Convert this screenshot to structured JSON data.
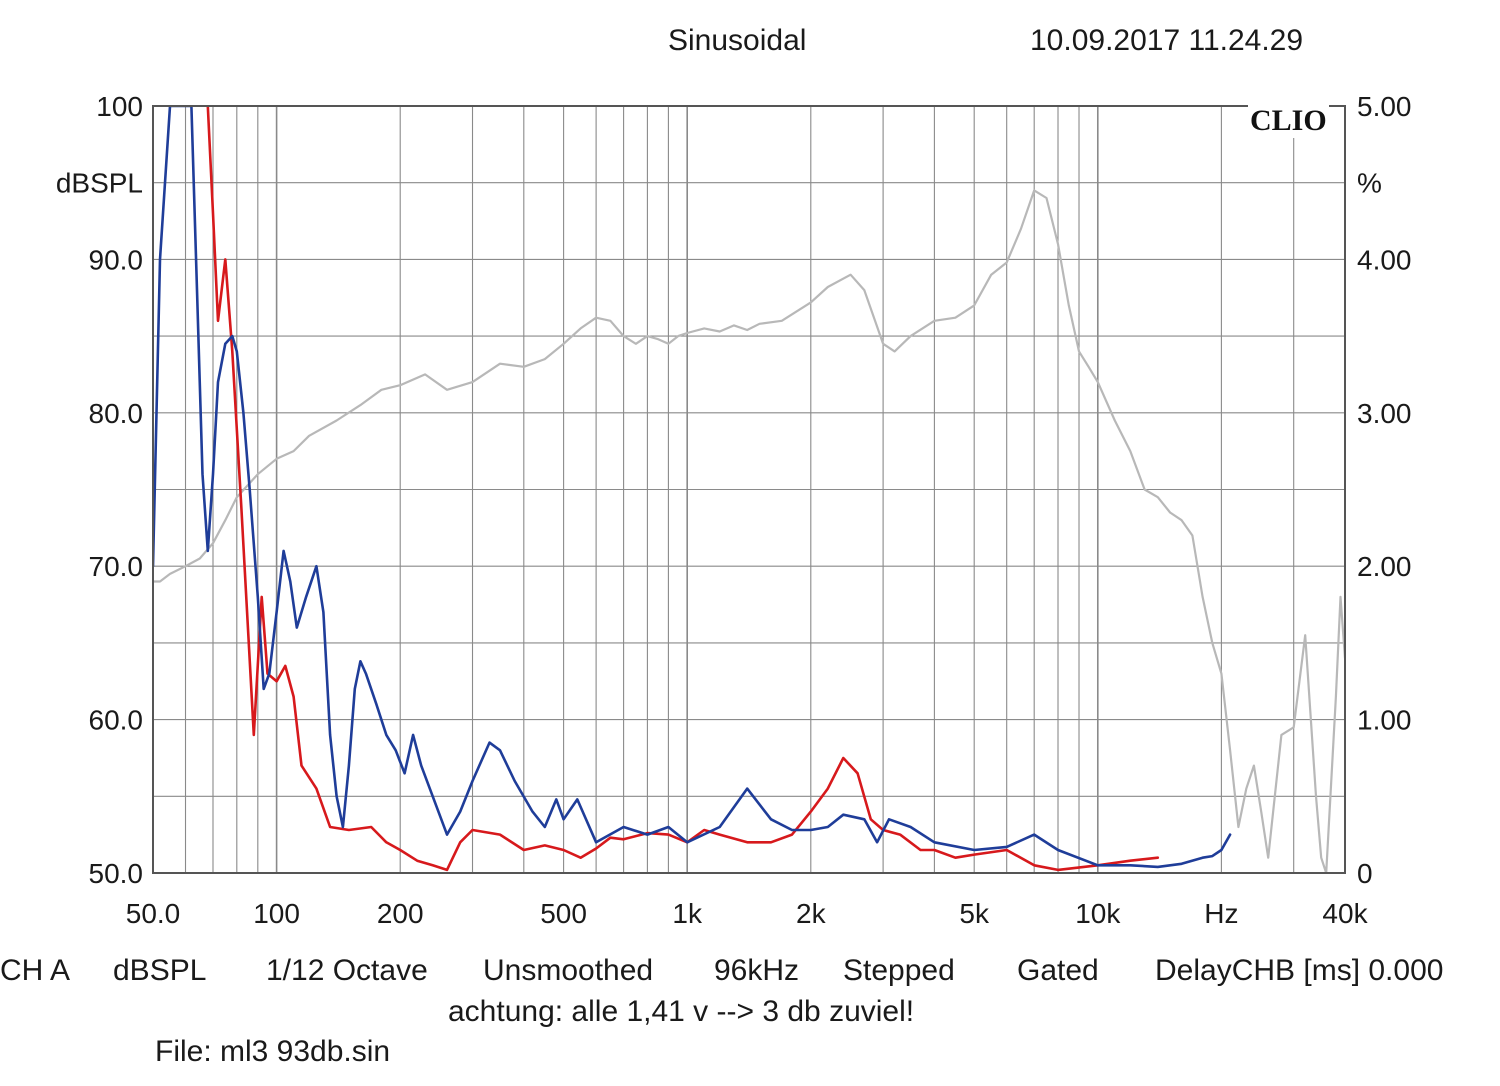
{
  "header": {
    "title": "Sinusoidal",
    "datetime": "10.09.2017 11.24.29"
  },
  "logo": "CLIO",
  "footer": {
    "channel": "CH A",
    "unit": "dBSPL",
    "octave": "1/12 Octave",
    "smoothing": "Unsmoothed",
    "rate": "96kHz",
    "mode": "Stepped",
    "gating": "Gated",
    "delay": "DelayCHB [ms] 0.000",
    "note": "achtung: alle 1,41 v --> 3 db zuviel!",
    "file": "File: ml3 93db.sin"
  },
  "colors": {
    "grid": "#8a8a8a",
    "axis": "#555555",
    "red_series": "#d7191c",
    "blue_series": "#1f3d99",
    "gray_series": "#b8b8b8"
  },
  "chart_data": {
    "type": "line",
    "x_scale": "log",
    "xlim": [
      50,
      40000
    ],
    "ylim_left": [
      50,
      100
    ],
    "ylim_right": [
      0,
      5
    ],
    "grid": true,
    "left_axis_unit": "dBSPL",
    "right_axis_unit": "%",
    "x_unit": "Hz",
    "left_ticks": [
      "50.0",
      "60.0",
      "70.0",
      "80.0",
      "90.0",
      "100"
    ],
    "right_ticks": [
      "0",
      "1.00",
      "2.00",
      "3.00",
      "4.00",
      "5.00"
    ],
    "x_tick_labels": [
      {
        "value": 50,
        "label": "50.0"
      },
      {
        "value": 100,
        "label": "100"
      },
      {
        "value": 200,
        "label": "200"
      },
      {
        "value": 500,
        "label": "500"
      },
      {
        "value": 1000,
        "label": "1k"
      },
      {
        "value": 2000,
        "label": "2k"
      },
      {
        "value": 5000,
        "label": "5k"
      },
      {
        "value": 10000,
        "label": "10k"
      },
      {
        "value": 20000,
        "label": "Hz"
      },
      {
        "value": 40000,
        "label": "40k"
      }
    ],
    "series": [
      {
        "color": "#b8b8b8",
        "axis": "right",
        "points": [
          [
            50,
            1.9
          ],
          [
            52,
            1.9
          ],
          [
            55,
            1.95
          ],
          [
            60,
            2.0
          ],
          [
            65,
            2.05
          ],
          [
            70,
            2.15
          ],
          [
            75,
            2.3
          ],
          [
            80,
            2.45
          ],
          [
            90,
            2.6
          ],
          [
            100,
            2.7
          ],
          [
            110,
            2.75
          ],
          [
            120,
            2.85
          ],
          [
            140,
            2.95
          ],
          [
            160,
            3.05
          ],
          [
            180,
            3.15
          ],
          [
            200,
            3.18
          ],
          [
            230,
            3.25
          ],
          [
            260,
            3.15
          ],
          [
            300,
            3.2
          ],
          [
            350,
            3.32
          ],
          [
            400,
            3.3
          ],
          [
            450,
            3.35
          ],
          [
            500,
            3.45
          ],
          [
            550,
            3.55
          ],
          [
            600,
            3.62
          ],
          [
            650,
            3.6
          ],
          [
            700,
            3.5
          ],
          [
            750,
            3.45
          ],
          [
            800,
            3.5
          ],
          [
            850,
            3.48
          ],
          [
            900,
            3.45
          ],
          [
            950,
            3.5
          ],
          [
            1000,
            3.52
          ],
          [
            1100,
            3.55
          ],
          [
            1200,
            3.53
          ],
          [
            1300,
            3.57
          ],
          [
            1400,
            3.54
          ],
          [
            1500,
            3.58
          ],
          [
            1700,
            3.6
          ],
          [
            2000,
            3.72
          ],
          [
            2200,
            3.82
          ],
          [
            2500,
            3.9
          ],
          [
            2700,
            3.8
          ],
          [
            3000,
            3.45
          ],
          [
            3200,
            3.4
          ],
          [
            3500,
            3.5
          ],
          [
            4000,
            3.6
          ],
          [
            4500,
            3.62
          ],
          [
            5000,
            3.7
          ],
          [
            5500,
            3.9
          ],
          [
            6000,
            3.98
          ],
          [
            6500,
            4.2
          ],
          [
            7000,
            4.45
          ],
          [
            7500,
            4.4
          ],
          [
            8000,
            4.1
          ],
          [
            8500,
            3.7
          ],
          [
            9000,
            3.4
          ],
          [
            9500,
            3.3
          ],
          [
            10000,
            3.2
          ],
          [
            11000,
            2.95
          ],
          [
            12000,
            2.75
          ],
          [
            13000,
            2.5
          ],
          [
            14000,
            2.45
          ],
          [
            15000,
            2.35
          ],
          [
            16000,
            2.3
          ],
          [
            17000,
            2.2
          ],
          [
            18000,
            1.8
          ],
          [
            19000,
            1.5
          ],
          [
            20000,
            1.3
          ],
          [
            21000,
            0.8
          ],
          [
            22000,
            0.3
          ],
          [
            23000,
            0.55
          ],
          [
            24000,
            0.7
          ],
          [
            25000,
            0.4
          ],
          [
            26000,
            0.1
          ],
          [
            28000,
            0.9
          ],
          [
            30000,
            0.95
          ],
          [
            32000,
            1.55
          ],
          [
            34000,
            0.5
          ],
          [
            35000,
            0.1
          ],
          [
            36000,
            0.0
          ],
          [
            38000,
            1.15
          ],
          [
            39000,
            1.8
          ],
          [
            40000,
            1.4
          ]
        ]
      },
      {
        "color": "#d7191c",
        "axis": "left",
        "points": [
          [
            68,
            100
          ],
          [
            70,
            93
          ],
          [
            72,
            86
          ],
          [
            75,
            90
          ],
          [
            78,
            84
          ],
          [
            82,
            74
          ],
          [
            88,
            59
          ],
          [
            92,
            68
          ],
          [
            95,
            63
          ],
          [
            100,
            62.5
          ],
          [
            105,
            63.5
          ],
          [
            110,
            61.5
          ],
          [
            115,
            57
          ],
          [
            125,
            55.5
          ],
          [
            135,
            53
          ],
          [
            150,
            52.8
          ],
          [
            170,
            53
          ],
          [
            185,
            52
          ],
          [
            200,
            51.5
          ],
          [
            220,
            50.8
          ],
          [
            240,
            50.5
          ],
          [
            260,
            50.2
          ],
          [
            280,
            52
          ],
          [
            300,
            52.8
          ],
          [
            350,
            52.5
          ],
          [
            400,
            51.5
          ],
          [
            450,
            51.8
          ],
          [
            500,
            51.5
          ],
          [
            550,
            51
          ],
          [
            600,
            51.6
          ],
          [
            650,
            52.3
          ],
          [
            700,
            52.2
          ],
          [
            800,
            52.6
          ],
          [
            900,
            52.5
          ],
          [
            1000,
            52.0
          ],
          [
            1100,
            52.8
          ],
          [
            1200,
            52.5
          ],
          [
            1400,
            52.0
          ],
          [
            1600,
            52.0
          ],
          [
            1800,
            52.5
          ],
          [
            2000,
            54.0
          ],
          [
            2200,
            55.5
          ],
          [
            2400,
            57.5
          ],
          [
            2600,
            56.5
          ],
          [
            2800,
            53.5
          ],
          [
            3000,
            52.8
          ],
          [
            3300,
            52.5
          ],
          [
            3700,
            51.5
          ],
          [
            4000,
            51.5
          ],
          [
            4500,
            51.0
          ],
          [
            5000,
            51.2
          ],
          [
            6000,
            51.5
          ],
          [
            7000,
            50.5
          ],
          [
            8000,
            50.2
          ],
          [
            10000,
            50.5
          ],
          [
            12000,
            50.8
          ],
          [
            14000,
            51.0
          ]
        ]
      },
      {
        "color": "#1f3d99",
        "axis": "left",
        "points": [
          [
            50,
            70
          ],
          [
            52,
            90
          ],
          [
            55,
            100
          ],
          [
            62,
            100
          ],
          [
            64,
            88
          ],
          [
            66,
            76
          ],
          [
            68,
            71
          ],
          [
            70,
            76
          ],
          [
            72,
            82
          ],
          [
            75,
            84.5
          ],
          [
            78,
            85
          ],
          [
            80,
            84
          ],
          [
            83,
            80
          ],
          [
            86,
            75
          ],
          [
            90,
            68
          ],
          [
            93,
            62
          ],
          [
            96,
            63
          ],
          [
            100,
            67
          ],
          [
            104,
            71
          ],
          [
            108,
            69
          ],
          [
            112,
            66
          ],
          [
            118,
            68
          ],
          [
            125,
            70
          ],
          [
            130,
            67
          ],
          [
            135,
            59
          ],
          [
            140,
            55
          ],
          [
            145,
            53
          ],
          [
            150,
            57
          ],
          [
            155,
            62
          ],
          [
            160,
            63.8
          ],
          [
            165,
            63
          ],
          [
            175,
            61
          ],
          [
            185,
            59
          ],
          [
            195,
            58
          ],
          [
            205,
            56.5
          ],
          [
            215,
            59
          ],
          [
            225,
            57
          ],
          [
            240,
            55
          ],
          [
            260,
            52.5
          ],
          [
            280,
            54
          ],
          [
            300,
            56
          ],
          [
            330,
            58.5
          ],
          [
            350,
            58
          ],
          [
            380,
            56
          ],
          [
            420,
            54
          ],
          [
            450,
            53
          ],
          [
            480,
            54.8
          ],
          [
            500,
            53.5
          ],
          [
            540,
            54.8
          ],
          [
            600,
            52
          ],
          [
            700,
            53
          ],
          [
            800,
            52.5
          ],
          [
            900,
            53
          ],
          [
            1000,
            52
          ],
          [
            1200,
            53
          ],
          [
            1400,
            55.5
          ],
          [
            1600,
            53.5
          ],
          [
            1800,
            52.8
          ],
          [
            2000,
            52.8
          ],
          [
            2200,
            53
          ],
          [
            2400,
            53.8
          ],
          [
            2700,
            53.5
          ],
          [
            2900,
            52
          ],
          [
            3100,
            53.5
          ],
          [
            3500,
            53
          ],
          [
            4000,
            52
          ],
          [
            5000,
            51.5
          ],
          [
            6000,
            51.7
          ],
          [
            7000,
            52.5
          ],
          [
            8000,
            51.5
          ],
          [
            10000,
            50.5
          ],
          [
            12000,
            50.5
          ],
          [
            14000,
            50.4
          ],
          [
            16000,
            50.6
          ],
          [
            18000,
            51
          ],
          [
            19000,
            51.1
          ],
          [
            20000,
            51.5
          ],
          [
            21000,
            52.5
          ]
        ]
      }
    ]
  }
}
